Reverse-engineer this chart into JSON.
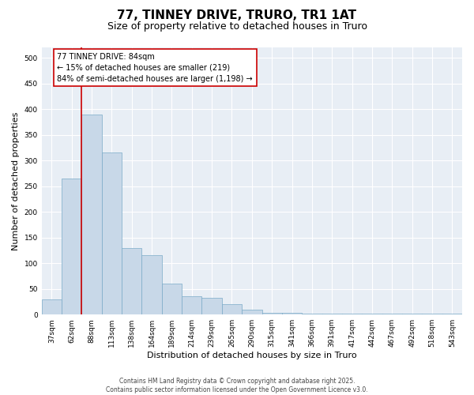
{
  "title_line1": "77, TINNEY DRIVE, TRURO, TR1 1AT",
  "title_line2": "Size of property relative to detached houses in Truro",
  "xlabel": "Distribution of detached houses by size in Truro",
  "ylabel": "Number of detached properties",
  "categories": [
    "37sqm",
    "62sqm",
    "88sqm",
    "113sqm",
    "138sqm",
    "164sqm",
    "189sqm",
    "214sqm",
    "239sqm",
    "265sqm",
    "290sqm",
    "315sqm",
    "341sqm",
    "366sqm",
    "391sqm",
    "417sqm",
    "442sqm",
    "467sqm",
    "492sqm",
    "518sqm",
    "543sqm"
  ],
  "values": [
    30,
    265,
    390,
    315,
    130,
    115,
    60,
    35,
    33,
    20,
    10,
    3,
    3,
    2,
    2,
    2,
    2,
    2,
    2,
    2,
    2
  ],
  "bar_color": "#c8d8e8",
  "bar_edge_color": "#7aaac8",
  "bar_edge_width": 0.5,
  "red_line_color": "#cc0000",
  "annotation_box_text": "77 TINNEY DRIVE: 84sqm\n← 15% of detached houses are smaller (219)\n84% of semi-detached houses are larger (1,198) →",
  "background_color": "#ffffff",
  "plot_bg_color": "#e8eef5",
  "ylim": [
    0,
    520
  ],
  "yticks": [
    0,
    50,
    100,
    150,
    200,
    250,
    300,
    350,
    400,
    450,
    500
  ],
  "footer_text": "Contains HM Land Registry data © Crown copyright and database right 2025.\nContains public sector information licensed under the Open Government Licence v3.0.",
  "title_fontsize": 11,
  "subtitle_fontsize": 9,
  "tick_fontsize": 6.5,
  "ylabel_fontsize": 8,
  "xlabel_fontsize": 8,
  "annotation_fontsize": 7,
  "footer_fontsize": 5.5
}
